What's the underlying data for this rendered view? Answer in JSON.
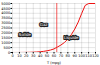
{
  "chart_data": {
    "type": "line",
    "xlabel": "T (mpg)",
    "x": [
      0,
      5,
      10,
      15,
      20,
      25,
      30,
      35,
      40,
      45,
      50,
      55,
      60,
      64,
      65,
      70,
      75,
      80,
      85,
      90,
      95,
      100,
      105,
      110,
      115,
      120
    ],
    "values": [
      1,
      2,
      4,
      7,
      12,
      20,
      32,
      50,
      78,
      118,
      175,
      255,
      365,
      530,
      560,
      760,
      1020,
      1370,
      1820,
      2390,
      3100,
      3980,
      4800,
      5000,
      5000,
      5000
    ],
    "color": "#ee1111",
    "xlim": [
      0,
      120
    ],
    "ylim": [
      0,
      5000
    ],
    "xticks": [
      0,
      10,
      20,
      30,
      40,
      50,
      60,
      70,
      80,
      90,
      100,
      110,
      120
    ],
    "yticks": [
      0,
      500,
      1000,
      1500,
      2000,
      2500,
      3000,
      3500,
      4000,
      4500,
      5000
    ],
    "grid": true,
    "vline": {
      "x": 64,
      "color": "#ee1111"
    },
    "annotations": [
      {
        "text": "Gaz",
        "x": 45,
        "y": 2800,
        "color": "#ffffff",
        "background": "#222222"
      },
      {
        "text": "Solide",
        "x": 18,
        "y": 1800,
        "color": "#ffffff",
        "background": "#222222"
      },
      {
        "text": "Liquide",
        "x": 85,
        "y": 1500,
        "color": "#ffffff",
        "background": "#222222"
      }
    ]
  }
}
